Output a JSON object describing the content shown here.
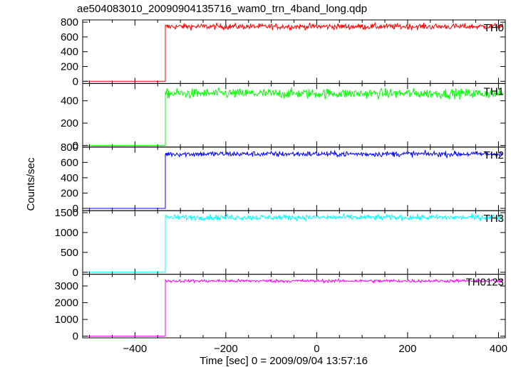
{
  "figure": {
    "title": "ae504083010_20090904135716_wam0_trn_4band_long.qdp",
    "ylabel": "Counts/sec",
    "xlabel": "Time [sec] 0 = 2009/09/04 13:57:16"
  },
  "chart_data": {
    "type": "line",
    "title": "ae504083010_20090904135716_wam0_trn_4band_long.qdp",
    "xlabel": "Time [sec] 0 = 2009/09/04 13:57:16",
    "ylabel": "Counts/sec",
    "xlim": [
      -515,
      415
    ],
    "x_ticks": [
      -400,
      -200,
      0,
      200,
      400
    ],
    "step_time": -333,
    "panels": [
      {
        "name": "TH0",
        "color": "#ff0000",
        "ylim": [
          -30,
          830
        ],
        "y_ticks": [
          0,
          200,
          400,
          600,
          800
        ],
        "level_before": 0,
        "level_after": 740,
        "noise": 20
      },
      {
        "name": "TH1",
        "color": "#00ff00",
        "ylim": [
          -15,
          555
        ],
        "y_ticks": [
          0,
          200,
          400
        ],
        "level_before": 0,
        "level_after": 465,
        "noise": 22
      },
      {
        "name": "TH2",
        "color": "#0000ff",
        "ylim": [
          -30,
          800
        ],
        "y_ticks": [
          0,
          200,
          400,
          600,
          800
        ],
        "level_before": 0,
        "level_after": 710,
        "noise": 18
      },
      {
        "name": "TH3",
        "color": "#00ffff",
        "ylim": [
          -50,
          1550
        ],
        "y_ticks": [
          0,
          500,
          1000,
          1500
        ],
        "level_before": 0,
        "level_after": 1380,
        "noise": 35
      },
      {
        "name": "TH0123",
        "color": "#ff00ff",
        "ylim": [
          -100,
          3700
        ],
        "y_ticks": [
          0,
          1000,
          2000,
          3000
        ],
        "level_before": 0,
        "level_after": 3300,
        "noise": 45
      }
    ]
  }
}
